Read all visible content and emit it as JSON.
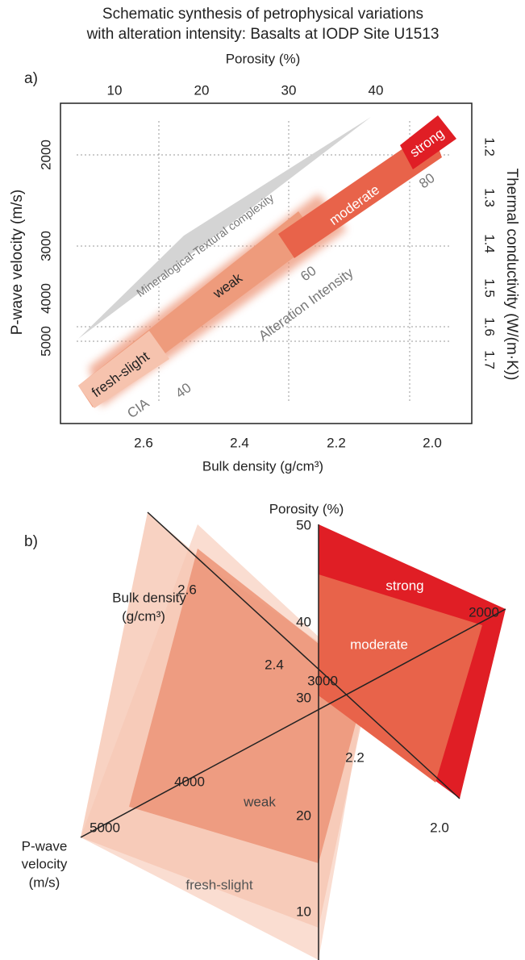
{
  "title": [
    "Schematic synthesis of petrophysical variations",
    "with alteration intensity: Basalts at IODP Site U1513"
  ],
  "panel_a": {
    "label": "a)",
    "top_axis": {
      "title": "Porosity (%)",
      "ticks": [
        "10",
        "20",
        "30",
        "40"
      ]
    },
    "bottom_axis": {
      "title": "Bulk density (g/cm³)",
      "ticks": [
        "2.6",
        "2.4",
        "2.2",
        "2.0"
      ]
    },
    "left_axis": {
      "title": "P-wave velocity (m/s)",
      "ticks": [
        "2000",
        "3000",
        "4000",
        "5000"
      ]
    },
    "right_axis": {
      "title": "Thermal conductivity (W/(m·K))",
      "ticks": [
        "1.2",
        "1.3",
        "1.4",
        "1.5",
        "1.6",
        "1.7"
      ]
    },
    "zones": [
      "fresh-slight",
      "weak",
      "moderate",
      "strong"
    ],
    "complexity_label": "Mineralogical-Textural complexity",
    "intensity_label": "Alteration Intensity",
    "cia_label": "CIA",
    "cia_ticks": [
      "40",
      "60",
      "80"
    ]
  },
  "panel_b": {
    "label": "b)",
    "porosity_axis": {
      "title": "Porosity (%)",
      "ticks": [
        "50",
        "40",
        "30",
        "20",
        "10"
      ]
    },
    "density_axis": {
      "title": [
        "Bulk density",
        "(g/cm³)"
      ],
      "ticks": [
        "2.6",
        "2.4",
        "2.2",
        "2.0"
      ]
    },
    "velocity_axis": {
      "title": [
        "P-wave",
        "velocity",
        "(m/s)"
      ],
      "ticks": [
        "5000",
        "4000",
        "3000",
        "2000"
      ]
    },
    "zones": [
      "strong",
      "moderate",
      "weak",
      "fresh-slight"
    ]
  }
}
